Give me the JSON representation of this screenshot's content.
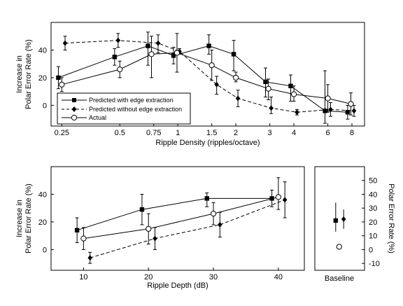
{
  "chart_data": [
    {
      "type": "line",
      "xscale": "log",
      "xlabel": "Ripple Density (ripples/octave)",
      "ylabel": [
        "Increase in",
        "Polar Error Rate (%)"
      ],
      "xlim": [
        0.22,
        9.3
      ],
      "ylim": [
        -15,
        60
      ],
      "xticks": [
        0.25,
        0.5,
        0.75,
        1,
        1.5,
        2,
        3,
        4,
        6,
        8
      ],
      "xtick_labels": [
        "0.25",
        "0.5",
        "0.75",
        "1",
        "1.5",
        "2",
        "3",
        "4",
        "6",
        "8"
      ],
      "yticks": [
        0,
        20,
        40
      ],
      "legend_position": "bottom-left",
      "series": [
        {
          "name": "Predicted with edge extraction",
          "marker": "square-filled",
          "line": "solid",
          "x": [
            0.24,
            0.47,
            0.7,
            0.95,
            1.45,
            1.95,
            2.85,
            3.85,
            5.8,
            7.6
          ],
          "y": [
            20,
            35,
            43,
            36,
            43,
            37,
            17,
            14,
            -4,
            -5
          ],
          "err_low": [
            12,
            29,
            29,
            30,
            37,
            25,
            6,
            3,
            -13,
            -10
          ],
          "err_high": [
            28,
            41,
            53,
            42,
            51,
            47,
            27,
            22,
            25,
            0
          ]
        },
        {
          "name": "Predicted without edge extraction",
          "marker": "diamond-filled",
          "line": "dashed",
          "x": [
            0.26,
            0.49,
            0.79,
            1.02,
            1.59,
            2.05,
            3.05,
            4.15,
            6.2,
            8.2
          ],
          "y": [
            45,
            47,
            45,
            39,
            15,
            5,
            -2,
            -5,
            -3,
            -4
          ],
          "err_low": [
            40,
            42,
            38,
            37,
            8,
            -1,
            -6,
            -7,
            -8,
            -8
          ],
          "err_high": [
            50,
            52,
            51,
            41,
            21,
            11,
            6,
            -3,
            2,
            0
          ]
        },
        {
          "name": "Actual",
          "marker": "circle-open",
          "line": "solid",
          "x": [
            0.25,
            0.5,
            0.73,
            0.99,
            1.5,
            2.0,
            2.95,
            4.0,
            6.0,
            7.9
          ],
          "y": [
            15,
            26,
            37,
            38,
            29,
            20,
            12,
            8,
            5,
            1
          ],
          "err_low": [
            10,
            20,
            20,
            24,
            18,
            17,
            4,
            3,
            -5,
            -7
          ],
          "err_high": [
            20,
            32,
            50,
            52,
            40,
            24,
            19,
            14,
            15,
            9
          ]
        }
      ]
    },
    {
      "type": "line",
      "xlabel": "Ripple Depth (dB)",
      "ylabel": [
        "Increase in",
        "Polar Error Rate (%)"
      ],
      "xlim": [
        5,
        44
      ],
      "ylim": [
        -15,
        60
      ],
      "xticks": [
        10,
        20,
        30,
        40
      ],
      "xtick_labels": [
        "10",
        "20",
        "30",
        "40"
      ],
      "yticks": [
        0,
        20,
        40
      ],
      "series": [
        {
          "name": "Predicted with edge extraction",
          "marker": "square-filled",
          "line": "solid",
          "x": [
            9,
            19,
            29,
            39
          ],
          "y": [
            14,
            29,
            37,
            37
          ],
          "err_low": [
            5,
            18,
            31,
            31
          ],
          "err_high": [
            23,
            40,
            41,
            43
          ]
        },
        {
          "name": "Predicted without edge extraction",
          "marker": "diamond-filled",
          "line": "dashed",
          "x": [
            11,
            21,
            31,
            41
          ],
          "y": [
            -6,
            8,
            18,
            36
          ],
          "err_low": [
            -10,
            0,
            9,
            23
          ],
          "err_high": [
            -2,
            16,
            27,
            49
          ]
        },
        {
          "name": "Actual",
          "marker": "circle-open",
          "line": "solid",
          "x": [
            10,
            20,
            30,
            40
          ],
          "y": [
            8,
            15,
            26,
            38
          ],
          "err_low": [
            0,
            4,
            18,
            29
          ],
          "err_high": [
            16,
            26,
            34,
            52
          ]
        }
      ]
    },
    {
      "type": "scatter",
      "xlabel": "Baseline",
      "ylabel": "Polar Error Rate (%)",
      "yaxis_side": "right",
      "ylim": [
        -15,
        60
      ],
      "yticks": [
        -10,
        0,
        10,
        20,
        30,
        40,
        50
      ],
      "series": [
        {
          "name": "Predicted with edge extraction",
          "marker": "square-filled",
          "y": 21,
          "err_low": 13,
          "err_high": 34
        },
        {
          "name": "Predicted without edge extraction",
          "marker": "diamond-filled",
          "y": 22,
          "err_low": 15,
          "err_high": 29
        },
        {
          "name": "Actual",
          "marker": "circle-open",
          "y": 2,
          "err_low": 2,
          "err_high": 2
        }
      ]
    }
  ]
}
